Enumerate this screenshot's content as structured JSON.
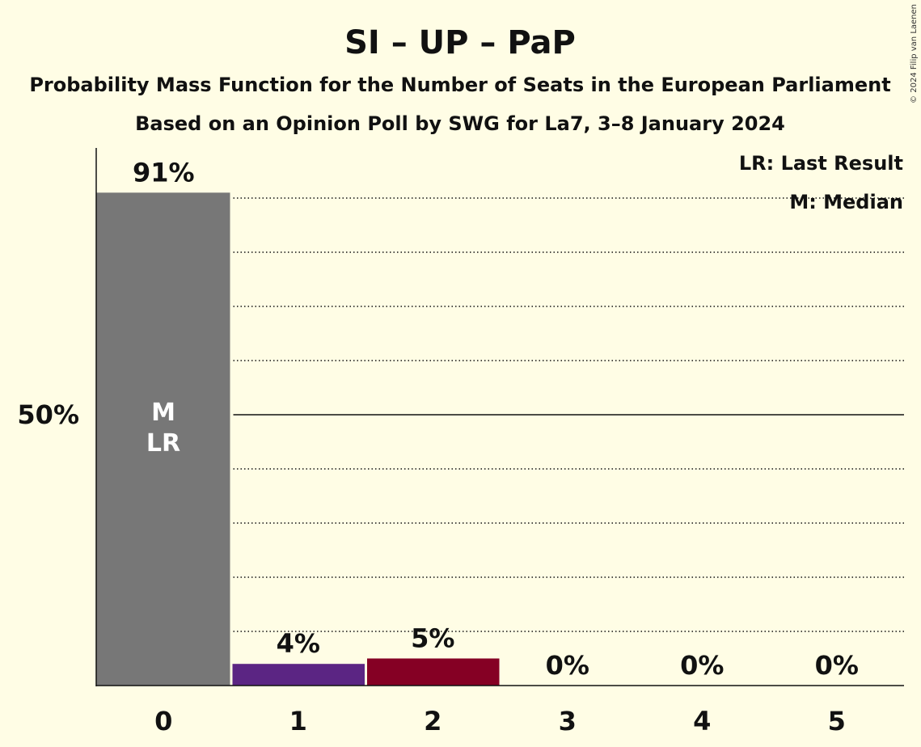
{
  "copyright": "© 2024 Filip van Laenen",
  "chart_data": {
    "type": "bar",
    "title": "SI – UP – PaP",
    "subtitle": "Probability Mass Function for the Number of Seats in the European Parliament",
    "subtitle2": "Based on an Opinion Poll by SWG for La7, 3–8 January 2024",
    "categories": [
      "0",
      "1",
      "2",
      "3",
      "4",
      "5"
    ],
    "values": [
      91,
      4,
      5,
      0,
      0,
      0
    ],
    "value_labels": [
      "91%",
      "4%",
      "5%",
      "0%",
      "0%",
      "0%"
    ],
    "bar_colors": [
      "#777777",
      "#5B2583",
      "#850024",
      "#777777",
      "#777777",
      "#777777"
    ],
    "ylim": [
      0,
      100
    ],
    "y_tick_label": "50%",
    "y_tick_value": 50,
    "gridlines": [
      10,
      20,
      30,
      40,
      60,
      70,
      80,
      90
    ],
    "legend": [
      "LR: Last Result",
      "M: Median"
    ],
    "legend_position": "top-right",
    "bar_markers": {
      "category": "0",
      "median": "M",
      "last_result": "LR"
    }
  }
}
